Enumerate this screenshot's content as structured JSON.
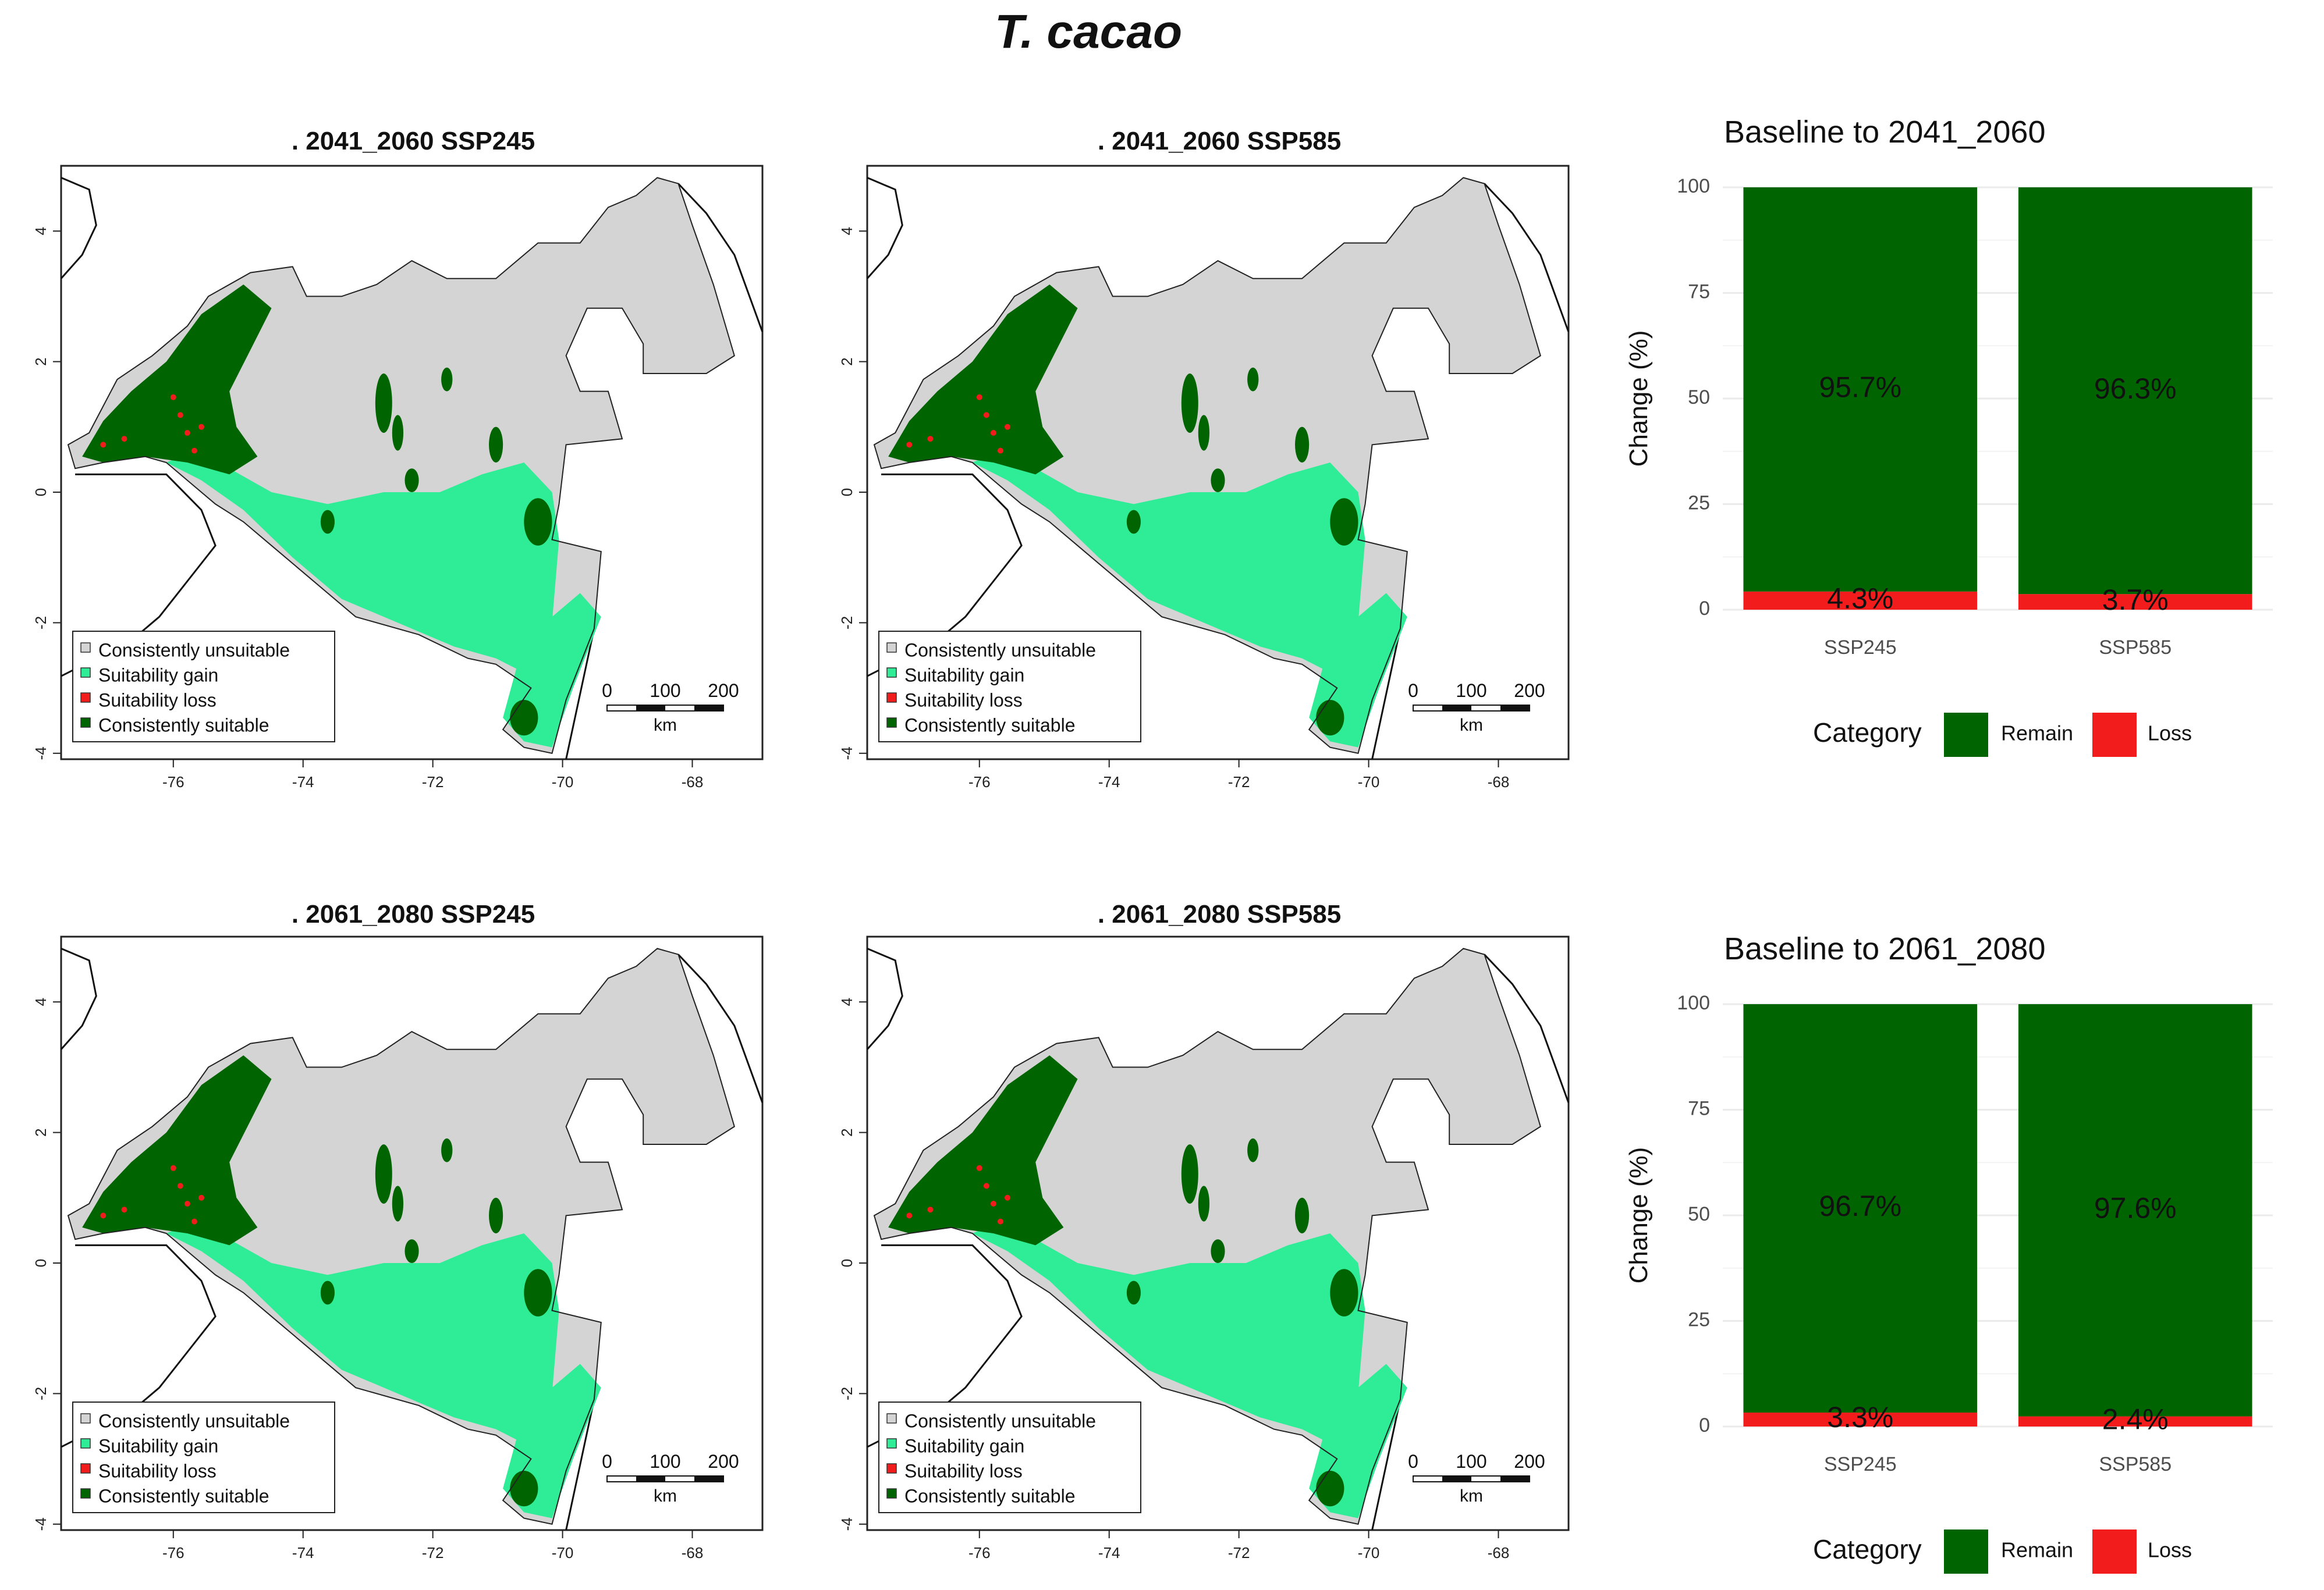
{
  "title": "T. cacao",
  "colors": {
    "unsuitable": "#d4d4d4",
    "gain": "#2fec96",
    "loss": "#f21c1c",
    "suitable": "#006400",
    "remain": "#006400",
    "axis": "#222222",
    "grid": "#ebebeb"
  },
  "maps": [
    {
      "title": ". 2041_2060  SSP245"
    },
    {
      "title": ". 2041_2060  SSP585"
    },
    {
      "title": ". 2061_2080  SSP245"
    },
    {
      "title": ". 2061_2080  SSP585"
    }
  ],
  "map_axes": {
    "x_ticks": [
      "-76",
      "-74",
      "-72",
      "-70",
      "-68"
    ],
    "y_ticks": [
      "4",
      "2",
      "0",
      "-2",
      "-4"
    ]
  },
  "legend": {
    "items": [
      "Consistently unsuitable",
      "Suitability gain",
      "Suitability loss",
      "Consistently suitable"
    ]
  },
  "scale_bar": {
    "labels": [
      "0",
      "100",
      "200"
    ],
    "unit": "km"
  },
  "chart_data": [
    {
      "type": "bar",
      "stacked": true,
      "title": "Baseline to  2041_2060",
      "categories": [
        "SSP245",
        "SSP585"
      ],
      "series": [
        {
          "name": "Remain",
          "values": [
            95.7,
            96.3
          ],
          "labels": [
            "95.7%",
            "96.3%"
          ]
        },
        {
          "name": "Loss",
          "values": [
            4.3,
            3.7
          ],
          "labels": [
            "4.3%",
            "3.7%"
          ]
        }
      ],
      "xlabel": "",
      "ylabel": "Change (%)",
      "ylim": [
        0,
        100
      ],
      "yticks": [
        "0",
        "25",
        "50",
        "75",
        "100"
      ],
      "legend_title": "Category",
      "legend_position": "bottom"
    },
    {
      "type": "bar",
      "stacked": true,
      "title": "Baseline to  2061_2080",
      "categories": [
        "SSP245",
        "SSP585"
      ],
      "series": [
        {
          "name": "Remain",
          "values": [
            96.7,
            97.6
          ],
          "labels": [
            "96.7%",
            "97.6%"
          ]
        },
        {
          "name": "Loss",
          "values": [
            3.3,
            2.4
          ],
          "labels": [
            "3.3%",
            "2.4%"
          ]
        }
      ],
      "xlabel": "",
      "ylabel": "Change (%)",
      "ylim": [
        0,
        100
      ],
      "yticks": [
        "0",
        "25",
        "50",
        "75",
        "100"
      ],
      "legend_title": "Category",
      "legend_position": "bottom"
    }
  ]
}
